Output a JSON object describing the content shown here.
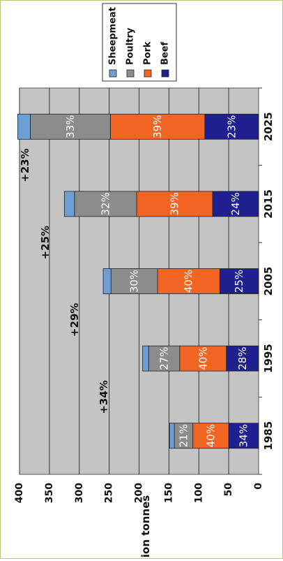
{
  "chart_data": {
    "type": "bar",
    "stacked": true,
    "orientation": "rotated-90-ccw",
    "categories": [
      "1985",
      "1995",
      "2005",
      "2015",
      "2025"
    ],
    "ylabel": "million tonnes",
    "ylim": [
      0,
      400
    ],
    "yticks": [
      "0",
      "50",
      "100",
      "150",
      "200",
      "250",
      "300",
      "350",
      "400"
    ],
    "grid": true,
    "legend_placement": "top-right",
    "series": [
      {
        "name": "Beef",
        "color": "#1f1f8f",
        "values": [
          50,
          54,
          65,
          77,
          90
        ],
        "labels": [
          "34%",
          "28%",
          "25%",
          "24%",
          "23%"
        ]
      },
      {
        "name": "Pork",
        "color": "#f26522",
        "values": [
          60,
          78,
          104,
          127,
          158
        ],
        "labels": [
          "40%",
          "40%",
          "40%",
          "39%",
          "39%"
        ]
      },
      {
        "name": "Poultry",
        "color": "#8c8c8c",
        "values": [
          31,
          52,
          78,
          104,
          134
        ],
        "labels": [
          "21%",
          "27%",
          "30%",
          "32%",
          "33%"
        ]
      },
      {
        "name": "Sheepmeat",
        "color": "#6e9fd4",
        "values": [
          8,
          10,
          13,
          17,
          21
        ],
        "labels": [
          "",
          "",
          "",
          "",
          ""
        ]
      }
    ],
    "annotations": [
      "+34%",
      "+29%",
      "+25%",
      "+23%"
    ]
  }
}
